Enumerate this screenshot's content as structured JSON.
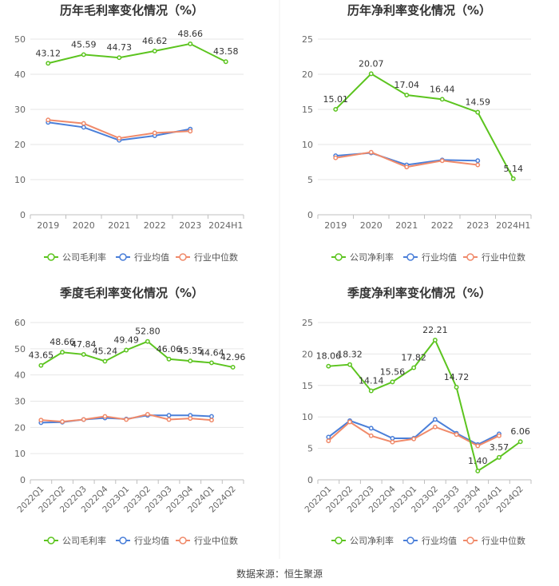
{
  "source": "数据来源：恒生聚源",
  "legend_labels": [
    "公司毛利率",
    "行业均值",
    "行业中位数"
  ],
  "colors": {
    "company": "#5cc41f",
    "mean": "#4a7fd9",
    "median": "#f08a6a",
    "grid": "#e6e6e6",
    "axis": "#bfbfbf",
    "text": "#666666",
    "title": "#333333"
  },
  "chart_data": [
    {
      "type": "line",
      "title": "历年毛利率变化情况（%）",
      "categories": [
        "2019",
        "2020",
        "2021",
        "2022",
        "2023",
        "2024H1"
      ],
      "ylim": [
        0,
        50
      ],
      "yticks": [
        0,
        10,
        20,
        30,
        40,
        50
      ],
      "grid": true,
      "legend_position": "bottom",
      "series": [
        {
          "name": "公司毛利率",
          "key": "company",
          "values": [
            43.12,
            45.59,
            44.73,
            46.62,
            48.66,
            43.58
          ],
          "labels": [
            "43.12",
            "45.59",
            "44.73",
            "46.62",
            "48.66",
            "43.58"
          ]
        },
        {
          "name": "行业均值",
          "key": "mean",
          "values": [
            26.3,
            24.9,
            21.2,
            22.5,
            24.4,
            null
          ]
        },
        {
          "name": "行业中位数",
          "key": "median",
          "values": [
            27.0,
            26.0,
            21.8,
            23.3,
            23.8,
            null
          ]
        }
      ]
    },
    {
      "type": "line",
      "title": "历年净利率变化情况（%）",
      "categories": [
        "2019",
        "2020",
        "2021",
        "2022",
        "2023",
        "2024H1"
      ],
      "ylim": [
        0,
        25
      ],
      "yticks": [
        0,
        5,
        10,
        15,
        20,
        25
      ],
      "grid": true,
      "legend_position": "bottom",
      "series": [
        {
          "name": "公司净利率",
          "key": "company",
          "values": [
            15.01,
            20.07,
            17.04,
            16.44,
            14.59,
            5.14
          ],
          "labels": [
            "15.01",
            "20.07",
            "17.04",
            "16.44",
            "14.59",
            "5.14"
          ]
        },
        {
          "name": "行业均值",
          "key": "mean",
          "values": [
            8.4,
            8.8,
            7.1,
            7.8,
            7.7,
            null
          ]
        },
        {
          "name": "行业中位数",
          "key": "median",
          "values": [
            8.1,
            8.9,
            6.8,
            7.7,
            7.1,
            null
          ]
        }
      ]
    },
    {
      "type": "line",
      "title": "季度毛利率变化情况（%）",
      "categories": [
        "2022Q1",
        "2022Q2",
        "2022Q3",
        "2022Q4",
        "2023Q1",
        "2023Q2",
        "2023Q3",
        "2023Q4",
        "2024Q1",
        "2024Q2"
      ],
      "ylim": [
        0,
        60
      ],
      "yticks": [
        0,
        10,
        20,
        30,
        40,
        50,
        60
      ],
      "grid": true,
      "legend_position": "bottom",
      "series": [
        {
          "name": "公司毛利率",
          "key": "company",
          "values": [
            43.65,
            48.66,
            47.84,
            45.24,
            49.49,
            52.8,
            46.06,
            45.35,
            44.64,
            42.96
          ],
          "labels": [
            "43.65",
            "48.66",
            "47.84",
            "45.24",
            "49.49",
            "52.80",
            "46.06",
            "45.35",
            "44.64",
            "42.96"
          ]
        },
        {
          "name": "行业均值",
          "key": "mean",
          "values": [
            21.8,
            22.0,
            23.0,
            23.6,
            23.2,
            24.6,
            24.6,
            24.6,
            24.2,
            null
          ]
        },
        {
          "name": "行业中位数",
          "key": "median",
          "values": [
            22.8,
            22.2,
            23.0,
            24.2,
            23.0,
            25.0,
            23.0,
            23.4,
            22.8,
            null
          ]
        }
      ]
    },
    {
      "type": "line",
      "title": "季度净利率变化情况（%）",
      "categories": [
        "2022Q1",
        "2022Q2",
        "2022Q3",
        "2022Q4",
        "2023Q1",
        "2023Q2",
        "2023Q3",
        "2023Q4",
        "2024Q1",
        "2024Q2"
      ],
      "ylim": [
        0,
        25
      ],
      "yticks": [
        0,
        5,
        10,
        15,
        20,
        25
      ],
      "grid": true,
      "legend_position": "bottom",
      "series": [
        {
          "name": "公司净利率",
          "key": "company",
          "values": [
            18.06,
            18.32,
            14.14,
            15.56,
            17.82,
            22.21,
            14.72,
            1.4,
            3.57,
            6.06
          ],
          "labels": [
            "18.06",
            "18.32",
            "14.14",
            "15.56",
            "17.82",
            "22.21",
            "14.72",
            "1.40",
            "3.57",
            "6.06"
          ]
        },
        {
          "name": "行业均值",
          "key": "mean",
          "values": [
            6.8,
            9.4,
            8.2,
            6.6,
            6.6,
            9.6,
            7.4,
            5.6,
            7.3,
            null
          ]
        },
        {
          "name": "行业中位数",
          "key": "median",
          "values": [
            6.2,
            9.2,
            7.0,
            6.0,
            6.5,
            8.4,
            7.2,
            5.4,
            7.0,
            null
          ]
        }
      ]
    }
  ]
}
